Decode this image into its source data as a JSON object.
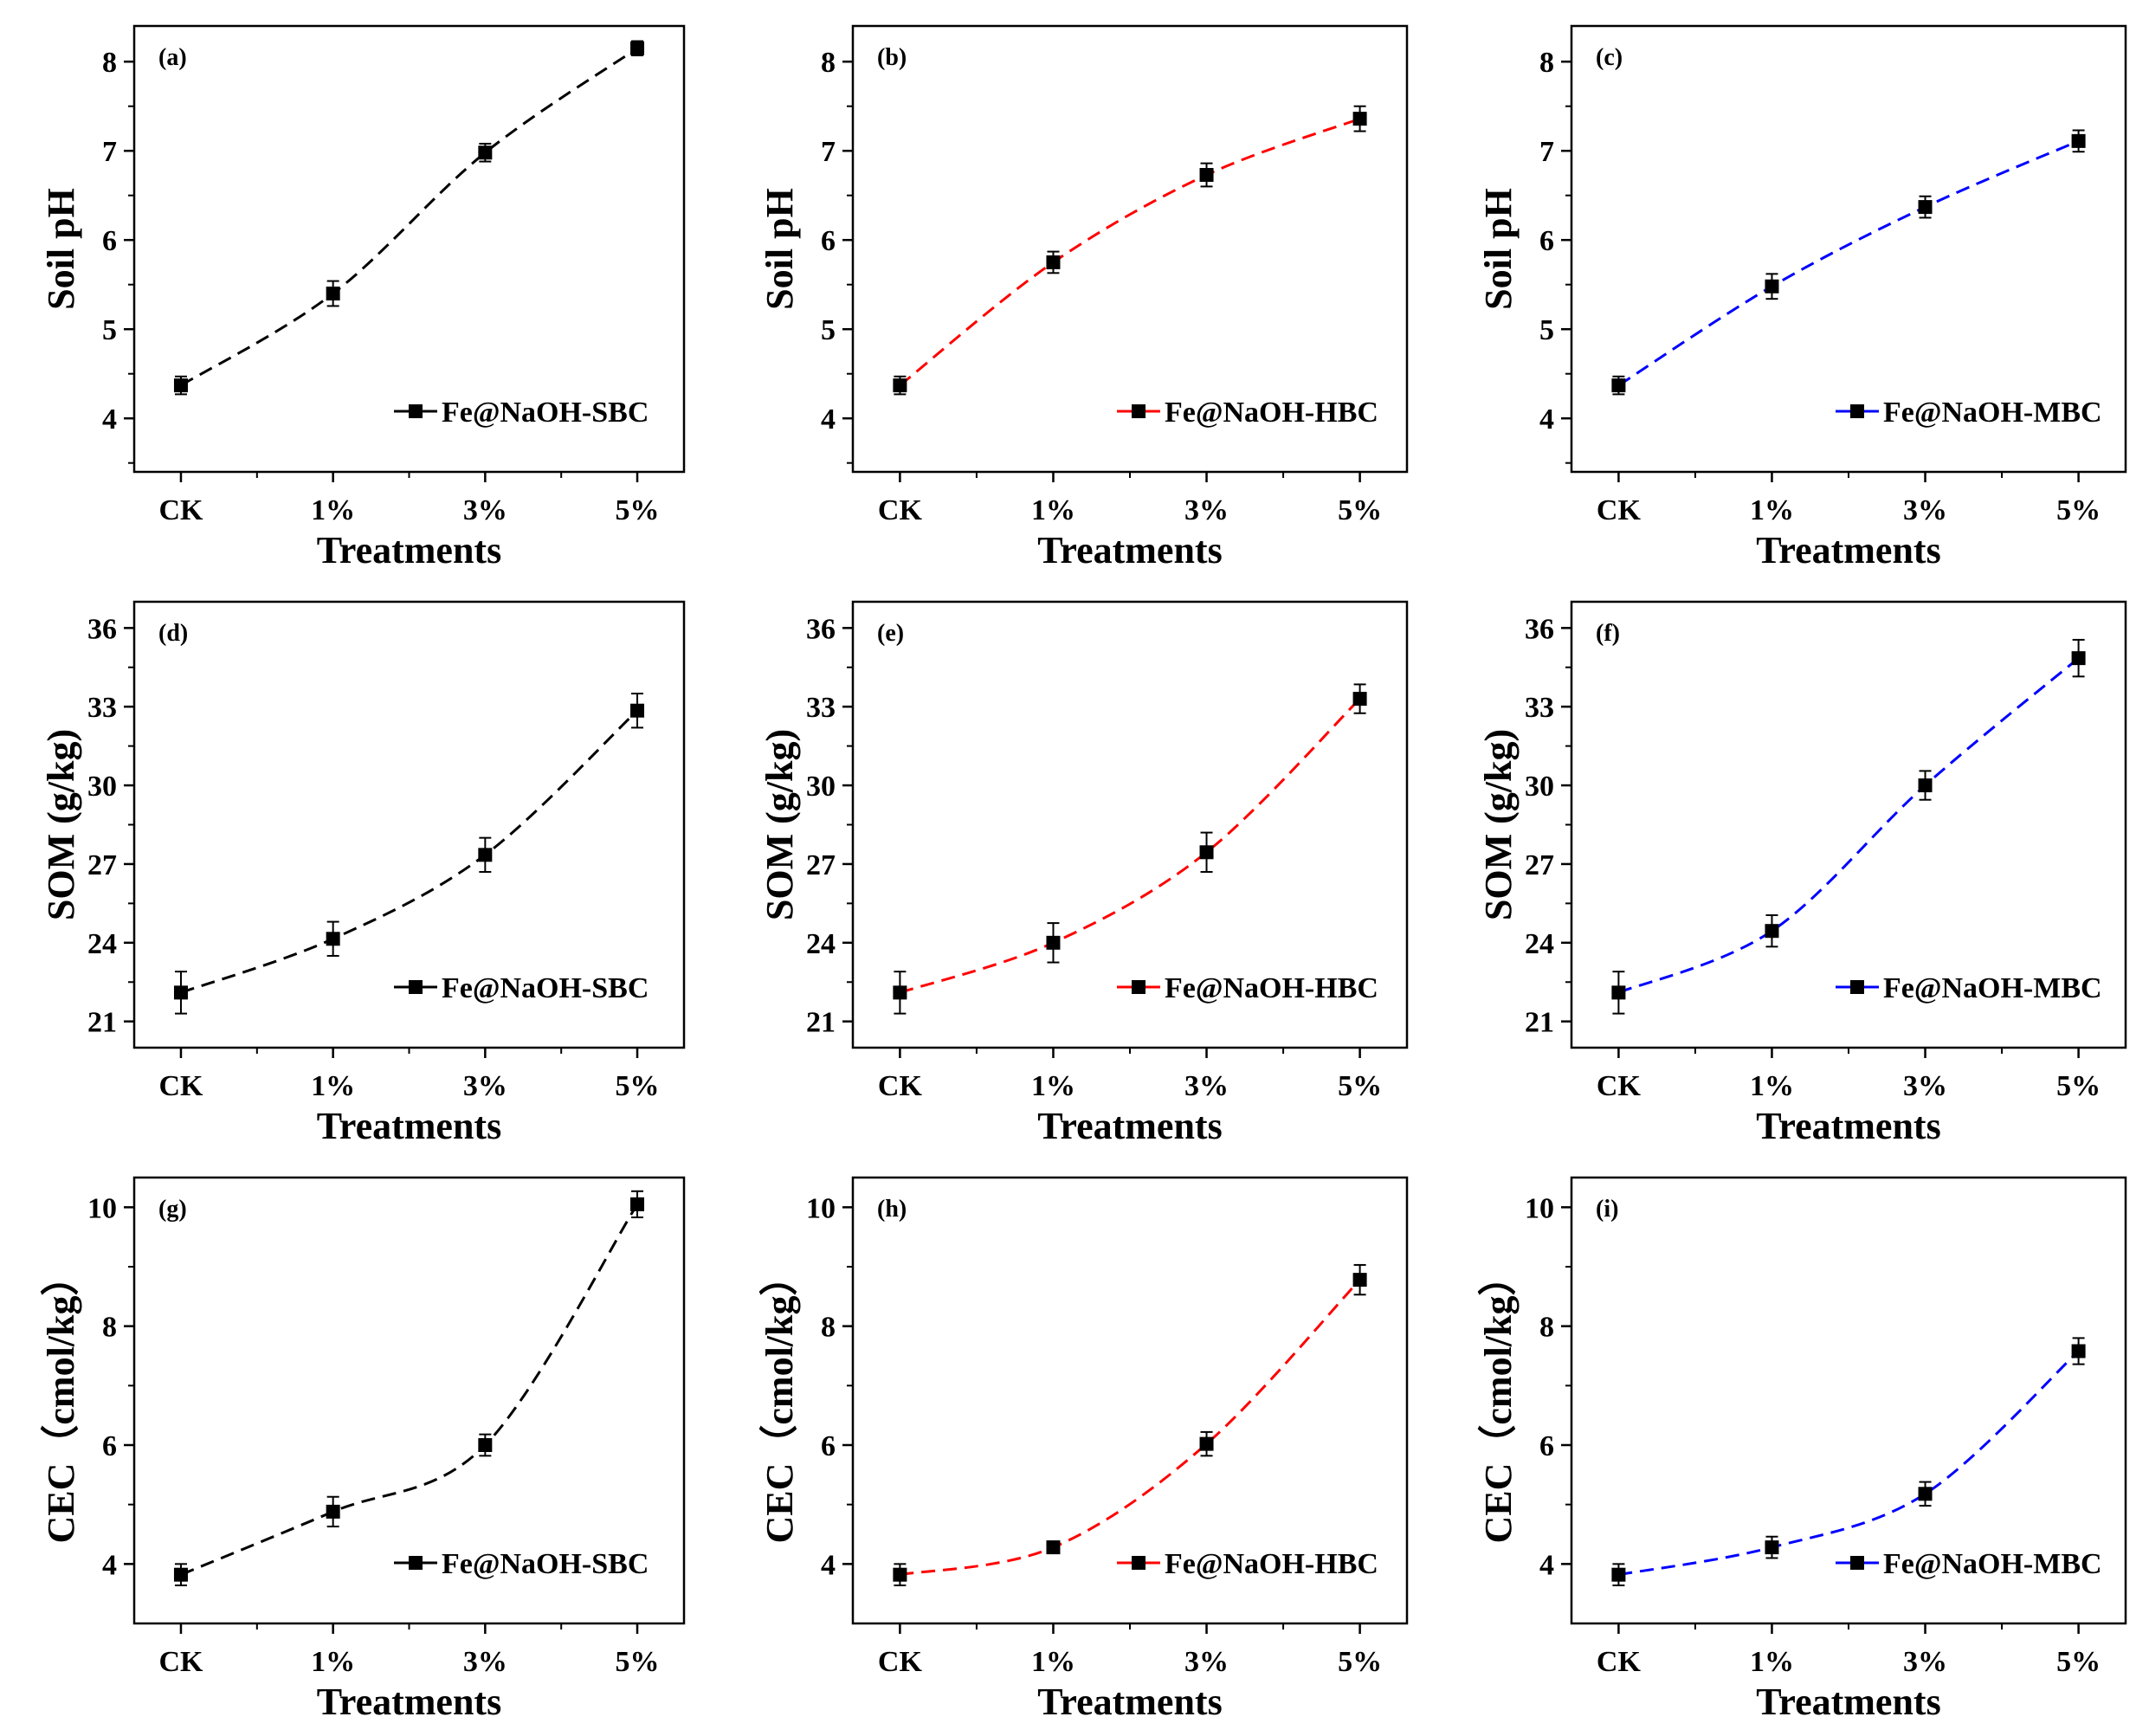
{
  "figure": {
    "description_free": true,
    "marker_color": "#000000"
  },
  "chart_data": [
    {
      "panel": "(a)",
      "type": "line",
      "title": "",
      "xlabel": "Treatments",
      "ylabel": "Soil pH",
      "categories": [
        "CK",
        "1%",
        "3%",
        "5%"
      ],
      "ylim": [
        3.4,
        8.4
      ],
      "yticks": [
        4,
        5,
        6,
        7,
        8
      ],
      "series": [
        {
          "name": "Fe@NaOH-SBC",
          "color": "#000000",
          "values": [
            4.37,
            5.4,
            6.98,
            8.15
          ],
          "errors": [
            0.1,
            0.14,
            0.1,
            0.08
          ]
        }
      ],
      "legend": "bottom-right"
    },
    {
      "panel": "(b)",
      "type": "line",
      "title": "",
      "xlabel": "Treatments",
      "ylabel": "Soil pH",
      "categories": [
        "CK",
        "1%",
        "3%",
        "5%"
      ],
      "ylim": [
        3.4,
        8.4
      ],
      "yticks": [
        4,
        5,
        6,
        7,
        8
      ],
      "series": [
        {
          "name": "Fe@NaOH-HBC",
          "color": "#ff0000",
          "values": [
            4.37,
            5.75,
            6.73,
            7.36
          ],
          "errors": [
            0.1,
            0.12,
            0.13,
            0.14
          ]
        }
      ],
      "legend": "bottom-right"
    },
    {
      "panel": "(c)",
      "type": "line",
      "title": "",
      "xlabel": "Treatments",
      "ylabel": "Soil pH",
      "categories": [
        "CK",
        "1%",
        "3%",
        "5%"
      ],
      "ylim": [
        3.4,
        8.4
      ],
      "yticks": [
        4,
        5,
        6,
        7,
        8
      ],
      "series": [
        {
          "name": "Fe@NaOH-MBC",
          "color": "#0000ff",
          "values": [
            4.37,
            5.48,
            6.37,
            7.11
          ],
          "errors": [
            0.1,
            0.14,
            0.12,
            0.12
          ]
        }
      ],
      "legend": "bottom-right"
    },
    {
      "panel": "(d)",
      "type": "line",
      "title": "",
      "xlabel": "Treatments",
      "ylabel": "SOM (g/kg)",
      "categories": [
        "CK",
        "1%",
        "3%",
        "5%"
      ],
      "ylim": [
        20.0,
        37.0
      ],
      "yticks": [
        21,
        24,
        27,
        30,
        33,
        36
      ],
      "series": [
        {
          "name": "Fe@NaOH-SBC",
          "color": "#000000",
          "values": [
            22.1,
            24.15,
            27.35,
            32.85
          ],
          "errors": [
            0.8,
            0.65,
            0.65,
            0.65
          ]
        }
      ],
      "legend": "bottom-right"
    },
    {
      "panel": "(e)",
      "type": "line",
      "title": "",
      "xlabel": "Treatments",
      "ylabel": "SOM (g/kg)",
      "categories": [
        "CK",
        "1%",
        "3%",
        "5%"
      ],
      "ylim": [
        20.0,
        37.0
      ],
      "yticks": [
        21,
        24,
        27,
        30,
        33,
        36
      ],
      "series": [
        {
          "name": "Fe@NaOH-HBC",
          "color": "#ff0000",
          "values": [
            22.1,
            24.0,
            27.45,
            33.3
          ],
          "errors": [
            0.8,
            0.75,
            0.75,
            0.55
          ]
        }
      ],
      "legend": "bottom-right"
    },
    {
      "panel": "(f)",
      "type": "line",
      "title": "",
      "xlabel": "Treatments",
      "ylabel": "SOM (g/kg)",
      "categories": [
        "CK",
        "1%",
        "3%",
        "5%"
      ],
      "ylim": [
        20.0,
        37.0
      ],
      "yticks": [
        21,
        24,
        27,
        30,
        33,
        36
      ],
      "series": [
        {
          "name": "Fe@NaOH-MBC",
          "color": "#0000ff",
          "values": [
            22.1,
            24.45,
            30.0,
            34.85
          ],
          "errors": [
            0.8,
            0.6,
            0.55,
            0.7
          ]
        }
      ],
      "legend": "bottom-right"
    },
    {
      "panel": "(g)",
      "type": "line",
      "title": "",
      "xlabel": "Treatments",
      "ylabel": "CEC（cmol/kg）",
      "categories": [
        "CK",
        "1%",
        "3%",
        "5%"
      ],
      "ylim": [
        3.0,
        10.5
      ],
      "yticks": [
        4,
        6,
        8,
        10
      ],
      "series": [
        {
          "name": "Fe@NaOH-SBC",
          "color": "#000000",
          "values": [
            3.82,
            4.88,
            6.0,
            10.05
          ],
          "errors": [
            0.18,
            0.25,
            0.18,
            0.22
          ]
        }
      ],
      "legend": "bottom-right"
    },
    {
      "panel": "(h)",
      "type": "line",
      "title": "",
      "xlabel": "Treatments",
      "ylabel": "CEC（cmol/kg）",
      "categories": [
        "CK",
        "1%",
        "3%",
        "5%"
      ],
      "ylim": [
        3.0,
        10.5
      ],
      "yticks": [
        4,
        6,
        8,
        10
      ],
      "series": [
        {
          "name": "Fe@NaOH-HBC",
          "color": "#ff0000",
          "values": [
            3.82,
            4.28,
            6.02,
            8.78
          ],
          "errors": [
            0.18,
            0.1,
            0.2,
            0.25
          ]
        }
      ],
      "legend": "bottom-right"
    },
    {
      "panel": "(i)",
      "type": "line",
      "title": "",
      "xlabel": "Treatments",
      "ylabel": "CEC（cmol/kg）",
      "categories": [
        "CK",
        "1%",
        "3%",
        "5%"
      ],
      "ylim": [
        3.0,
        10.5
      ],
      "yticks": [
        4,
        6,
        8,
        10
      ],
      "series": [
        {
          "name": "Fe@NaOH-MBC",
          "color": "#0000ff",
          "values": [
            3.82,
            4.28,
            5.18,
            7.58
          ],
          "errors": [
            0.18,
            0.18,
            0.2,
            0.22
          ]
        }
      ],
      "legend": "bottom-right"
    }
  ]
}
